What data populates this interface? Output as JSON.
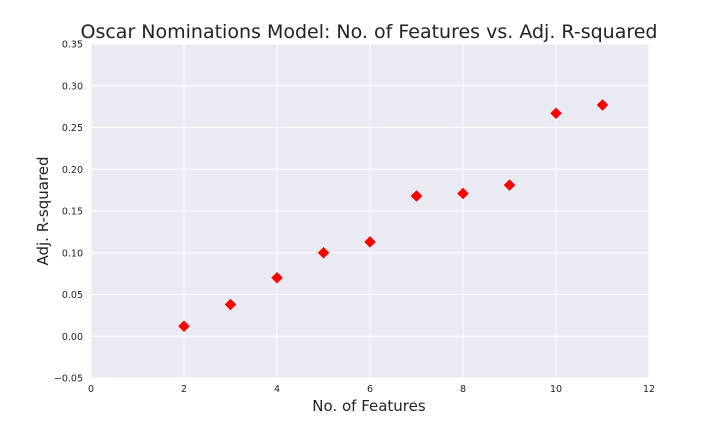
{
  "chart_data": {
    "type": "scatter",
    "title": "Oscar Nominations Model: No. of Features vs. Adj. R-squared",
    "xlabel": "No. of Features",
    "ylabel": "Adj. R-squared",
    "xlim": [
      0,
      12
    ],
    "ylim": [
      -0.05,
      0.35
    ],
    "xticks": [
      0,
      2,
      4,
      6,
      8,
      10,
      12
    ],
    "yticks": [
      -0.05,
      0.0,
      0.05,
      0.1,
      0.15,
      0.2,
      0.25,
      0.3,
      0.35
    ],
    "xtick_labels": [
      "0",
      "2",
      "4",
      "6",
      "8",
      "10",
      "12"
    ],
    "ytick_labels": [
      "−0.05",
      "0.00",
      "0.05",
      "0.10",
      "0.15",
      "0.20",
      "0.25",
      "0.30",
      "0.35"
    ],
    "grid": true,
    "marker": "diamond",
    "colors": {
      "marker": "#ff0000",
      "plot_background": "#eaeaf2",
      "grid": "#ffffff"
    },
    "series": [
      {
        "x": [
          2,
          3,
          4,
          5,
          6,
          7,
          8,
          9,
          10,
          11
        ],
        "y": [
          0.012,
          0.038,
          0.07,
          0.1,
          0.113,
          0.168,
          0.171,
          0.181,
          0.267,
          0.277
        ]
      }
    ]
  }
}
